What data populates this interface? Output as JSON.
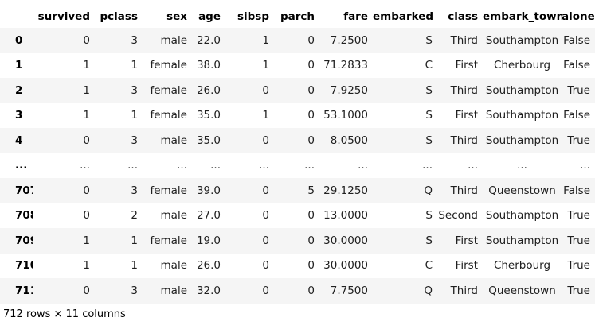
{
  "table": {
    "columns": [
      "survived",
      "pclass",
      "sex",
      "age",
      "sibsp",
      "parch",
      "fare",
      "embarked",
      "class",
      "embark_town",
      "alone"
    ],
    "rows": [
      {
        "index": "0",
        "cells": [
          "0",
          "3",
          "male",
          "22.0",
          "1",
          "0",
          "7.2500",
          "S",
          "Third",
          "Southampton",
          "False"
        ]
      },
      {
        "index": "1",
        "cells": [
          "1",
          "1",
          "female",
          "38.0",
          "1",
          "0",
          "71.2833",
          "C",
          "First",
          "Cherbourg",
          "False"
        ]
      },
      {
        "index": "2",
        "cells": [
          "1",
          "3",
          "female",
          "26.0",
          "0",
          "0",
          "7.9250",
          "S",
          "Third",
          "Southampton",
          "True"
        ]
      },
      {
        "index": "3",
        "cells": [
          "1",
          "1",
          "female",
          "35.0",
          "1",
          "0",
          "53.1000",
          "S",
          "First",
          "Southampton",
          "False"
        ]
      },
      {
        "index": "4",
        "cells": [
          "0",
          "3",
          "male",
          "35.0",
          "0",
          "0",
          "8.0500",
          "S",
          "Third",
          "Southampton",
          "True"
        ]
      },
      {
        "index": "...",
        "cells": [
          "...",
          "...",
          "...",
          "...",
          "...",
          "...",
          "...",
          "...",
          "...",
          "...",
          "..."
        ]
      },
      {
        "index": "707",
        "cells": [
          "0",
          "3",
          "female",
          "39.0",
          "0",
          "5",
          "29.1250",
          "Q",
          "Third",
          "Queenstown",
          "False"
        ]
      },
      {
        "index": "708",
        "cells": [
          "0",
          "2",
          "male",
          "27.0",
          "0",
          "0",
          "13.0000",
          "S",
          "Second",
          "Southampton",
          "True"
        ]
      },
      {
        "index": "709",
        "cells": [
          "1",
          "1",
          "female",
          "19.0",
          "0",
          "0",
          "30.0000",
          "S",
          "First",
          "Southampton",
          "True"
        ]
      },
      {
        "index": "710",
        "cells": [
          "1",
          "1",
          "male",
          "26.0",
          "0",
          "0",
          "30.0000",
          "C",
          "First",
          "Cherbourg",
          "True"
        ]
      },
      {
        "index": "711",
        "cells": [
          "0",
          "3",
          "male",
          "32.0",
          "0",
          "0",
          "7.7500",
          "Q",
          "Third",
          "Queenstown",
          "True"
        ]
      }
    ]
  },
  "footer": {
    "shape_text": "712 rows × 11 columns"
  },
  "colors": {
    "stripe": "#f5f5f5",
    "text": "#000000"
  }
}
